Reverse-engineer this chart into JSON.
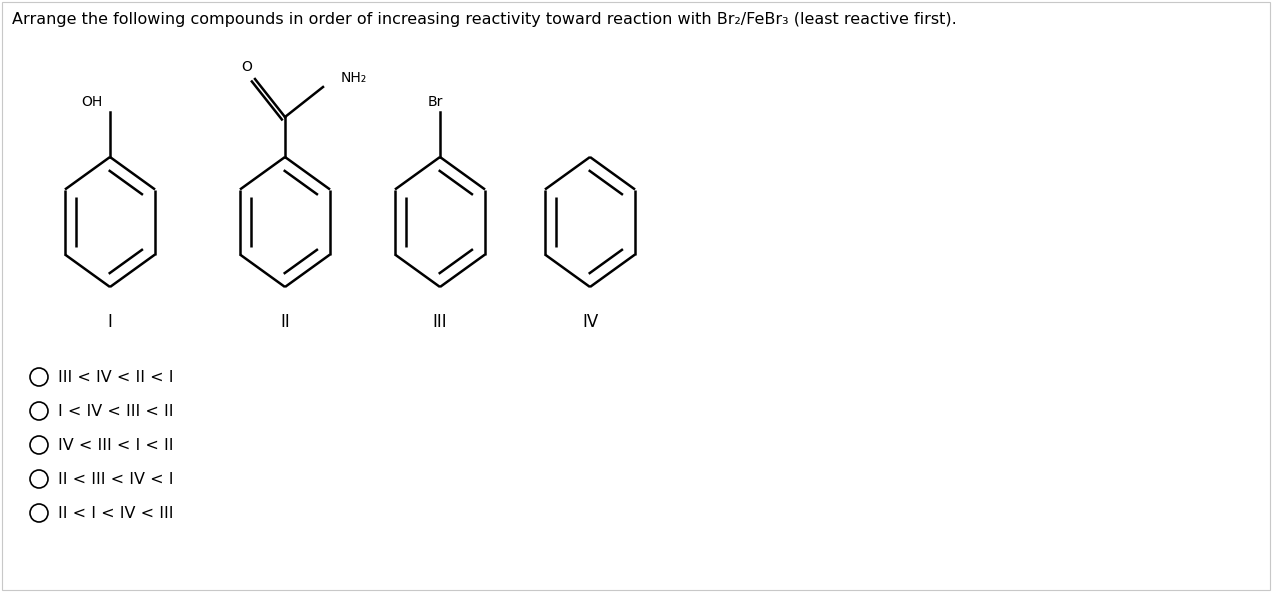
{
  "title": "Arrange the following compounds in order of increasing reactivity toward reaction with Br₂/FeBr₃ (least reactive first).",
  "title_fontsize": 11.5,
  "background_color": "#ffffff",
  "border_color": "#c8c8c8",
  "compounds": [
    "I",
    "II",
    "III",
    "IV"
  ],
  "options": [
    "III < IV < II < I",
    "I < IV < III < II",
    "IV < III < I < II",
    "II < III < IV < I",
    "II < I < IV < III"
  ],
  "text_color": "#000000",
  "ring_color": "#000000",
  "ring_lw": 1.8
}
